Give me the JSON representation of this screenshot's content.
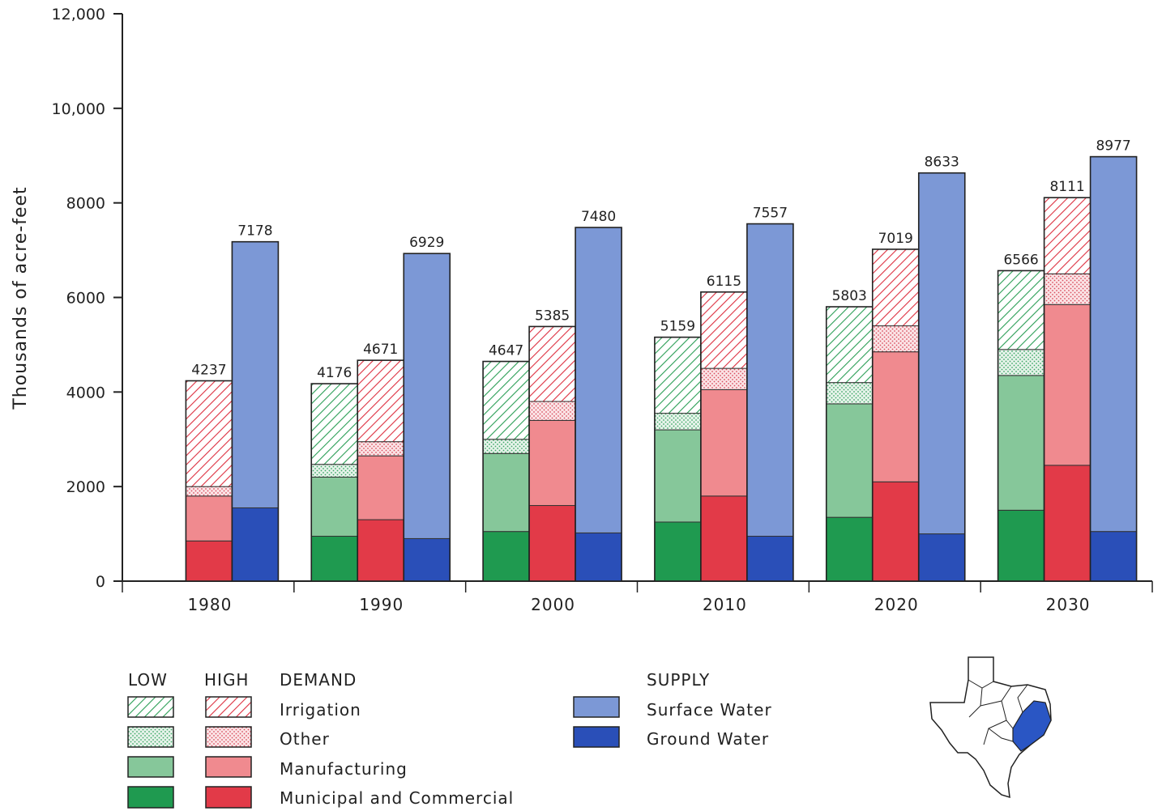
{
  "chart_data": {
    "type": "bar",
    "ylabel": "Thousands of acre-feet",
    "ylim": [
      0,
      12000
    ],
    "yticks": [
      0,
      2000,
      4000,
      6000,
      8000,
      10000,
      12000
    ],
    "ytick_labels": [
      "0",
      "2000",
      "4000",
      "6000",
      "8000",
      "10,000",
      "12,000"
    ],
    "categories": [
      "1980",
      "1990",
      "2000",
      "2010",
      "2020",
      "2030"
    ],
    "demand_components": [
      "Municipal and Commercial",
      "Manufacturing",
      "Other",
      "Irrigation"
    ],
    "supply_components": [
      "Ground Water",
      "Surface Water"
    ],
    "groups": [
      {
        "year": "1980",
        "bars": [
          {
            "kind": "high",
            "total": 4237,
            "values": [
              850,
              950,
              200,
              2237
            ]
          },
          {
            "kind": "supply",
            "total": 7178,
            "values": [
              1550,
              5628
            ]
          }
        ]
      },
      {
        "year": "1990",
        "bars": [
          {
            "kind": "low",
            "total": 4176,
            "values": [
              950,
              1250,
              270,
              1706
            ]
          },
          {
            "kind": "high",
            "total": 4671,
            "values": [
              1300,
              1350,
              300,
              1721
            ]
          },
          {
            "kind": "supply",
            "total": 6929,
            "values": [
              900,
              6029
            ]
          }
        ]
      },
      {
        "year": "2000",
        "bars": [
          {
            "kind": "low",
            "total": 4647,
            "values": [
              1050,
              1650,
              300,
              1647
            ]
          },
          {
            "kind": "high",
            "total": 5385,
            "values": [
              1600,
              1800,
              400,
              1585
            ]
          },
          {
            "kind": "supply",
            "total": 7480,
            "values": [
              1020,
              6460
            ]
          }
        ]
      },
      {
        "year": "2010",
        "bars": [
          {
            "kind": "low",
            "total": 5159,
            "values": [
              1250,
              1950,
              350,
              1609
            ]
          },
          {
            "kind": "high",
            "total": 6115,
            "values": [
              1800,
              2250,
              450,
              1615
            ]
          },
          {
            "kind": "supply",
            "total": 7557,
            "values": [
              950,
              6607
            ]
          }
        ]
      },
      {
        "year": "2020",
        "bars": [
          {
            "kind": "low",
            "total": 5803,
            "values": [
              1350,
              2400,
              450,
              1603
            ]
          },
          {
            "kind": "high",
            "total": 7019,
            "values": [
              2100,
              2750,
              550,
              1619
            ]
          },
          {
            "kind": "supply",
            "total": 8633,
            "values": [
              1000,
              7633
            ]
          }
        ]
      },
      {
        "year": "2030",
        "bars": [
          {
            "kind": "low",
            "total": 6566,
            "values": [
              1500,
              2850,
              550,
              1666
            ]
          },
          {
            "kind": "high",
            "total": 8111,
            "values": [
              2450,
              3400,
              650,
              1611
            ]
          },
          {
            "kind": "supply",
            "total": 8977,
            "values": [
              1050,
              7927
            ]
          }
        ]
      }
    ],
    "colors": {
      "low_municipal": "#1f9a50",
      "low_manufacturing": "#86c79a",
      "low_other_dots": "#3fa868",
      "low_irrigation_hatch": "#2a9e55",
      "high_municipal": "#e23a48",
      "high_manufacturing": "#f08a8f",
      "high_other_dots": "#d95060",
      "high_irrigation_hatch": "#dd3040",
      "surface_water": "#7c98d6",
      "ground_water": "#2a4fb8",
      "map_highlight": "#2a56c4"
    }
  },
  "legend": {
    "low_label": "LOW",
    "high_label": "HIGH",
    "demand_label": "DEMAND",
    "supply_label": "SUPPLY",
    "items": {
      "irrigation": "Irrigation",
      "other": "Other",
      "manufacturing": "Manufacturing",
      "municipal": "Municipal and Commercial",
      "surface": "Surface Water",
      "ground": "Ground Water"
    }
  },
  "map": {
    "icon": "texas-region-map-icon"
  }
}
